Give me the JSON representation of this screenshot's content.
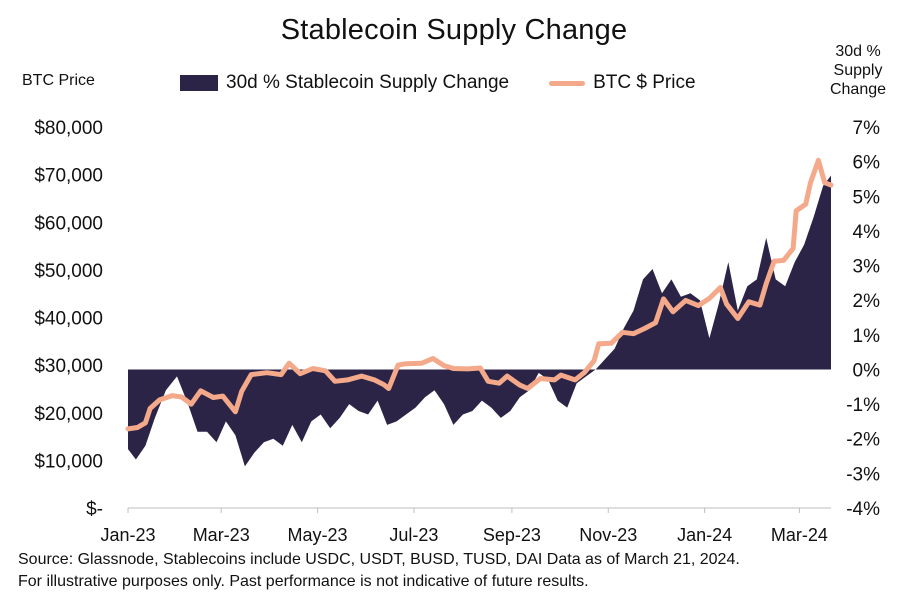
{
  "title": "Stablecoin Supply Change",
  "footnote": {
    "line1": "Source: Glassnode, Stablecoins include USDC, USDT, BUSD, TUSD, DAI Data as of March 21, 2024.",
    "line2": "For illustrative purposes only. Past performance is not indicative of future results."
  },
  "colors": {
    "area": "#2b2447",
    "line": "#f4a98a"
  },
  "chart_data": {
    "type": "area",
    "title": "Stablecoin Supply Change",
    "left_axis": {
      "label": "BTC Price",
      "range": [
        0,
        80000
      ],
      "ticks": [
        0,
        10000,
        20000,
        30000,
        40000,
        50000,
        60000,
        70000,
        80000
      ],
      "tick_labels": [
        "$-",
        "$10,000",
        "$20,000",
        "$30,000",
        "$40,000",
        "$50,000",
        "$60,000",
        "$70,000",
        "$80,000"
      ]
    },
    "right_axis": {
      "label": "30d % Supply Change",
      "label_lines": [
        "30d %",
        "Supply",
        "Change"
      ],
      "range": [
        -4,
        7
      ],
      "ticks": [
        -4,
        -3,
        -2,
        -1,
        0,
        1,
        2,
        3,
        4,
        5,
        6,
        7
      ],
      "tick_labels": [
        "-4%",
        "-3%",
        "-2%",
        "-1%",
        "0%",
        "1%",
        "2%",
        "3%",
        "4%",
        "5%",
        "6%",
        "7%"
      ]
    },
    "x_axis": {
      "range": [
        "2023-01-01",
        "2024-03-21"
      ],
      "ticks": [
        "2023-01-01",
        "2023-03-01",
        "2023-05-01",
        "2023-07-01",
        "2023-09-01",
        "2023-11-01",
        "2024-01-01",
        "2024-03-01"
      ],
      "tick_labels": [
        "Jan-23",
        "Mar-23",
        "May-23",
        "Jul-23",
        "Sep-23",
        "Nov-23",
        "Jan-24",
        "Mar-24"
      ]
    },
    "grid": false,
    "legend_position": "top",
    "series": [
      {
        "name": "30d % Stablecoin Supply Change",
        "type": "area",
        "axis": "right",
        "points": [
          [
            "2023-01-01",
            -2.3
          ],
          [
            "2023-01-06",
            -2.6
          ],
          [
            "2023-01-12",
            -2.2
          ],
          [
            "2023-01-18",
            -1.4
          ],
          [
            "2023-01-25",
            -0.6
          ],
          [
            "2023-02-01",
            -0.2
          ],
          [
            "2023-02-08",
            -1.0
          ],
          [
            "2023-02-14",
            -1.8
          ],
          [
            "2023-02-20",
            -1.8
          ],
          [
            "2023-02-26",
            -2.1
          ],
          [
            "2023-03-04",
            -1.5
          ],
          [
            "2023-03-10",
            -1.9
          ],
          [
            "2023-03-16",
            -2.8
          ],
          [
            "2023-03-22",
            -2.4
          ],
          [
            "2023-03-28",
            -2.1
          ],
          [
            "2023-04-03",
            -2.0
          ],
          [
            "2023-04-09",
            -2.2
          ],
          [
            "2023-04-15",
            -1.6
          ],
          [
            "2023-04-21",
            -2.1
          ],
          [
            "2023-04-27",
            -1.5
          ],
          [
            "2023-05-03",
            -1.3
          ],
          [
            "2023-05-09",
            -1.7
          ],
          [
            "2023-05-15",
            -1.4
          ],
          [
            "2023-05-21",
            -1.0
          ],
          [
            "2023-05-27",
            -1.2
          ],
          [
            "2023-06-02",
            -1.3
          ],
          [
            "2023-06-08",
            -0.9
          ],
          [
            "2023-06-14",
            -1.6
          ],
          [
            "2023-06-20",
            -1.5
          ],
          [
            "2023-06-26",
            -1.3
          ],
          [
            "2023-07-02",
            -1.1
          ],
          [
            "2023-07-08",
            -0.8
          ],
          [
            "2023-07-14",
            -0.6
          ],
          [
            "2023-07-20",
            -1.0
          ],
          [
            "2023-07-26",
            -1.6
          ],
          [
            "2023-08-01",
            -1.3
          ],
          [
            "2023-08-07",
            -1.2
          ],
          [
            "2023-08-13",
            -0.9
          ],
          [
            "2023-08-19",
            -1.1
          ],
          [
            "2023-08-25",
            -1.4
          ],
          [
            "2023-08-31",
            -1.2
          ],
          [
            "2023-09-06",
            -0.8
          ],
          [
            "2023-09-12",
            -0.6
          ],
          [
            "2023-09-18",
            -0.1
          ],
          [
            "2023-09-24",
            -0.3
          ],
          [
            "2023-09-30",
            -0.9
          ],
          [
            "2023-10-06",
            -1.1
          ],
          [
            "2023-10-12",
            -0.4
          ],
          [
            "2023-10-18",
            -0.2
          ],
          [
            "2023-10-24",
            0.0
          ],
          [
            "2023-10-30",
            0.3
          ],
          [
            "2023-11-05",
            0.6
          ],
          [
            "2023-11-11",
            1.2
          ],
          [
            "2023-11-17",
            1.7
          ],
          [
            "2023-11-23",
            2.6
          ],
          [
            "2023-11-29",
            2.9
          ],
          [
            "2023-12-05",
            2.2
          ],
          [
            "2023-12-11",
            2.6
          ],
          [
            "2023-12-17",
            2.1
          ],
          [
            "2023-12-23",
            2.2
          ],
          [
            "2023-12-29",
            2.0
          ],
          [
            "2024-01-04",
            0.9
          ],
          [
            "2024-01-10",
            1.9
          ],
          [
            "2024-01-16",
            3.1
          ],
          [
            "2024-01-22",
            1.7
          ],
          [
            "2024-01-28",
            2.4
          ],
          [
            "2024-02-03",
            2.6
          ],
          [
            "2024-02-09",
            3.8
          ],
          [
            "2024-02-15",
            2.6
          ],
          [
            "2024-02-21",
            2.4
          ],
          [
            "2024-02-27",
            3.1
          ],
          [
            "2024-03-04",
            3.6
          ],
          [
            "2024-03-10",
            4.4
          ],
          [
            "2024-03-16",
            5.3
          ],
          [
            "2024-03-21",
            5.6
          ]
        ]
      },
      {
        "name": "BTC $ Price",
        "type": "line",
        "axis": "left",
        "points": [
          [
            "2023-01-01",
            16600
          ],
          [
            "2023-01-07",
            16900
          ],
          [
            "2023-01-12",
            17900
          ],
          [
            "2023-01-15",
            20900
          ],
          [
            "2023-01-21",
            22700
          ],
          [
            "2023-01-29",
            23600
          ],
          [
            "2023-02-04",
            23300
          ],
          [
            "2023-02-10",
            21800
          ],
          [
            "2023-02-16",
            24600
          ],
          [
            "2023-02-24",
            23200
          ],
          [
            "2023-03-02",
            23500
          ],
          [
            "2023-03-10",
            20200
          ],
          [
            "2023-03-14",
            24500
          ],
          [
            "2023-03-20",
            28000
          ],
          [
            "2023-03-30",
            28400
          ],
          [
            "2023-04-08",
            28000
          ],
          [
            "2023-04-13",
            30400
          ],
          [
            "2023-04-20",
            28200
          ],
          [
            "2023-04-28",
            29300
          ],
          [
            "2023-05-06",
            28800
          ],
          [
            "2023-05-12",
            26600
          ],
          [
            "2023-05-20",
            26900
          ],
          [
            "2023-05-29",
            27700
          ],
          [
            "2023-06-06",
            26900
          ],
          [
            "2023-06-12",
            25900
          ],
          [
            "2023-06-15",
            25100
          ],
          [
            "2023-06-21",
            30000
          ],
          [
            "2023-06-26",
            30300
          ],
          [
            "2023-07-06",
            30400
          ],
          [
            "2023-07-13",
            31400
          ],
          [
            "2023-07-20",
            29900
          ],
          [
            "2023-07-26",
            29300
          ],
          [
            "2023-08-04",
            29200
          ],
          [
            "2023-08-12",
            29400
          ],
          [
            "2023-08-17",
            26600
          ],
          [
            "2023-08-24",
            26200
          ],
          [
            "2023-08-29",
            27700
          ],
          [
            "2023-09-06",
            25800
          ],
          [
            "2023-09-11",
            25100
          ],
          [
            "2023-09-19",
            27200
          ],
          [
            "2023-09-28",
            26900
          ],
          [
            "2023-10-02",
            27900
          ],
          [
            "2023-10-11",
            26900
          ],
          [
            "2023-10-17",
            28500
          ],
          [
            "2023-10-23",
            30900
          ],
          [
            "2023-10-26",
            34500
          ],
          [
            "2023-11-03",
            34600
          ],
          [
            "2023-11-10",
            36900
          ],
          [
            "2023-11-17",
            36600
          ],
          [
            "2023-11-24",
            37700
          ],
          [
            "2023-12-01",
            38900
          ],
          [
            "2023-12-06",
            43900
          ],
          [
            "2023-12-12",
            41200
          ],
          [
            "2023-12-20",
            43600
          ],
          [
            "2023-12-28",
            42500
          ],
          [
            "2024-01-04",
            44000
          ],
          [
            "2024-01-11",
            46300
          ],
          [
            "2024-01-15",
            42800
          ],
          [
            "2024-01-22",
            39800
          ],
          [
            "2024-01-29",
            43300
          ],
          [
            "2024-02-05",
            42600
          ],
          [
            "2024-02-09",
            47100
          ],
          [
            "2024-02-14",
            51800
          ],
          [
            "2024-02-20",
            52000
          ],
          [
            "2024-02-26",
            54500
          ],
          [
            "2024-02-28",
            62400
          ],
          [
            "2024-03-05",
            63800
          ],
          [
            "2024-03-08",
            68300
          ],
          [
            "2024-03-13",
            73000
          ],
          [
            "2024-03-17",
            68300
          ],
          [
            "2024-03-21",
            67800
          ]
        ]
      }
    ]
  }
}
